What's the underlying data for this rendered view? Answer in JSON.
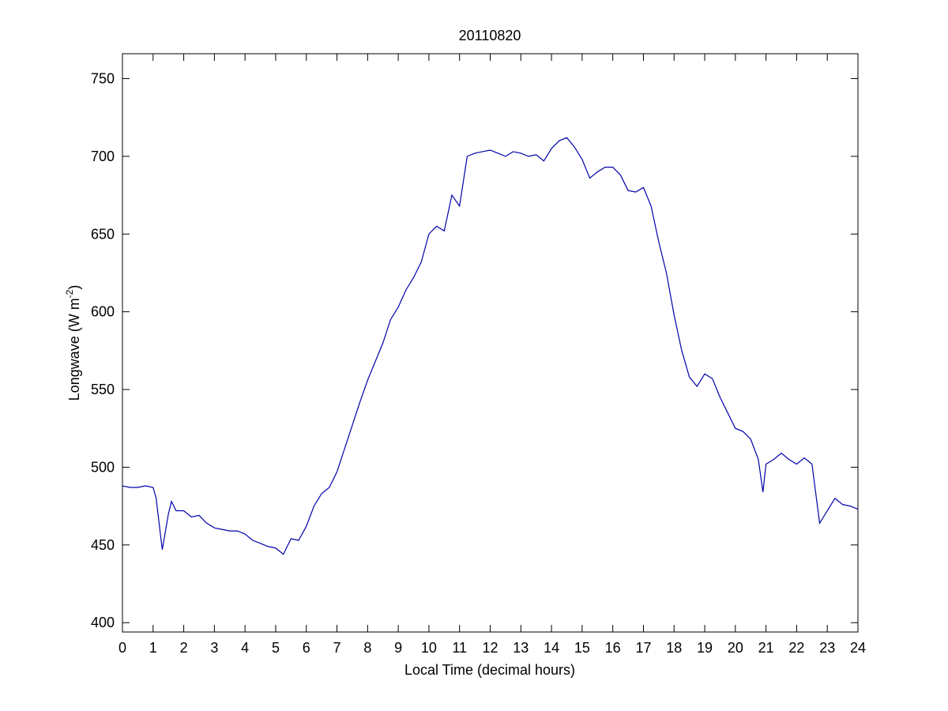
{
  "chart_data": {
    "type": "line",
    "title": "20110820",
    "xlabel": "Local Time (decimal hours)",
    "ylabel": {
      "text": "Longwave (W m",
      "superscript": "-2",
      "suffix": ")"
    },
    "x": [
      0,
      0.25,
      0.5,
      0.75,
      1.0,
      1.1,
      1.25,
      1.3,
      1.5,
      1.6,
      1.75,
      2.0,
      2.25,
      2.5,
      2.75,
      3.0,
      3.25,
      3.5,
      3.75,
      4.0,
      4.25,
      4.5,
      4.75,
      5.0,
      5.25,
      5.5,
      5.75,
      6.0,
      6.25,
      6.5,
      6.75,
      7.0,
      7.25,
      7.5,
      7.75,
      8.0,
      8.25,
      8.5,
      8.75,
      9.0,
      9.25,
      9.5,
      9.75,
      10.0,
      10.25,
      10.5,
      10.75,
      11.0,
      11.25,
      11.5,
      11.75,
      12.0,
      12.25,
      12.5,
      12.75,
      13.0,
      13.25,
      13.5,
      13.75,
      14.0,
      14.25,
      14.5,
      14.75,
      15.0,
      15.25,
      15.5,
      15.75,
      16.0,
      16.25,
      16.5,
      16.75,
      17.0,
      17.25,
      17.5,
      17.75,
      18.0,
      18.25,
      18.5,
      18.75,
      19.0,
      19.25,
      19.5,
      19.75,
      20.0,
      20.25,
      20.5,
      20.75,
      20.9,
      21.0,
      21.25,
      21.5,
      21.75,
      22.0,
      22.25,
      22.5,
      22.75,
      23.0,
      23.25,
      23.5,
      23.75,
      24.0
    ],
    "series": [
      {
        "name": "Longwave",
        "color": "#0000aa",
        "values": [
          488,
          487,
          487,
          488,
          487,
          480,
          455,
          447,
          470,
          478,
          472,
          472,
          468,
          469,
          464,
          461,
          460,
          459,
          459,
          457,
          453,
          451,
          449,
          448,
          444,
          454,
          453,
          462,
          475,
          483,
          487,
          497,
          512,
          527,
          542,
          556,
          568,
          580,
          595,
          603,
          614,
          622,
          632,
          650,
          655,
          652,
          675,
          668,
          700,
          702,
          703,
          704,
          702,
          700,
          703,
          702,
          700,
          701,
          697,
          705,
          710,
          712,
          706,
          698,
          686,
          690,
          693,
          693,
          688,
          678,
          677,
          680,
          668,
          645,
          625,
          598,
          575,
          558,
          552,
          560,
          557,
          545,
          535,
          525,
          523,
          518,
          505,
          484,
          502,
          505,
          509,
          505,
          502,
          506,
          502,
          464,
          472,
          480,
          476,
          475,
          473
        ]
      }
    ],
    "xlim": [
      0,
      24
    ],
    "xticks": [
      0,
      1,
      2,
      3,
      4,
      5,
      6,
      7,
      8,
      9,
      10,
      11,
      12,
      13,
      14,
      15,
      16,
      17,
      18,
      19,
      20,
      21,
      22,
      23,
      24
    ],
    "ylim": [
      394,
      766
    ],
    "yticks": [
      400,
      450,
      500,
      550,
      600,
      650,
      700,
      750
    ],
    "grid": false
  }
}
